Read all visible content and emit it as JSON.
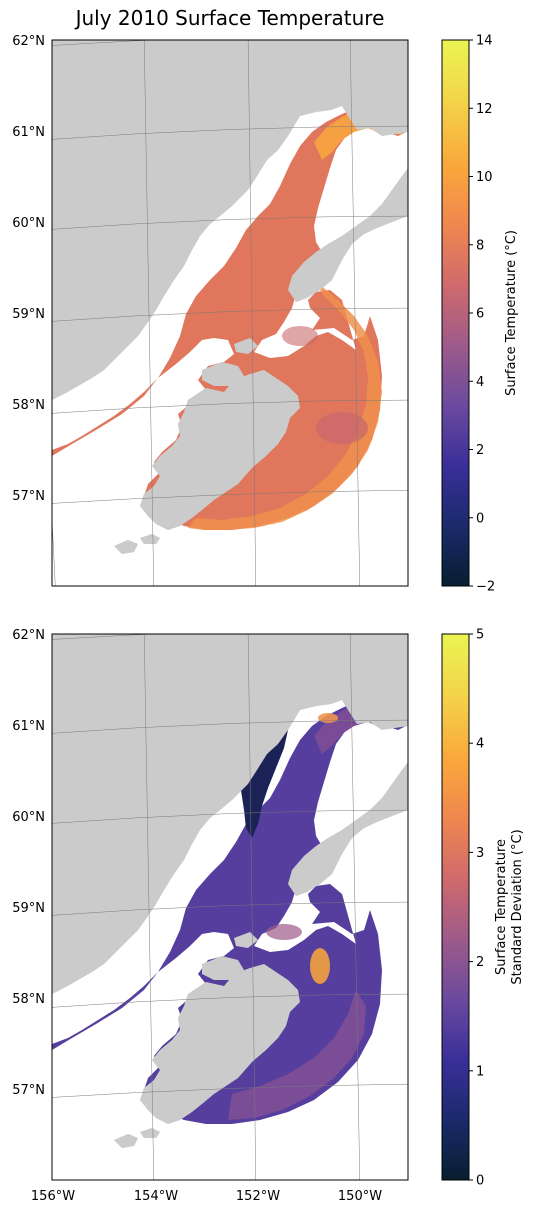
{
  "title": "July 2010 Surface Temperature",
  "colors": {
    "land": "#cbcbcb",
    "grid": "#888888",
    "frame": "#000000",
    "colormap": [
      "#071e30",
      "#1b2a6b",
      "#3a2f99",
      "#6a4a9e",
      "#9d5a8a",
      "#cf6a6d",
      "#ef8650",
      "#f9a83b",
      "#f3d44a",
      "#eaf552"
    ]
  },
  "map": {
    "latitude_labels": [
      "62°N",
      "61°N",
      "60°N",
      "59°N",
      "58°N",
      "57°N"
    ],
    "longitude_labels": [
      "156°W",
      "154°W",
      "152°W",
      "150°W"
    ]
  },
  "panels": [
    {
      "variable": "Surface Temperature",
      "colorbar": {
        "label_lines": [
          "Surface Temperature (°C)"
        ],
        "min": -2,
        "max": 14,
        "ticks": [
          "14",
          "12",
          "10",
          "8",
          "6",
          "4",
          "2",
          "0",
          "−2"
        ]
      }
    },
    {
      "variable": "Surface Temperature Standard Deviation",
      "colorbar": {
        "label_lines": [
          "Surface Temperature",
          "Standard Deviation (°C)"
        ],
        "min": 0,
        "max": 5,
        "ticks": [
          "5",
          "4",
          "3",
          "2",
          "1",
          "0"
        ]
      }
    }
  ]
}
